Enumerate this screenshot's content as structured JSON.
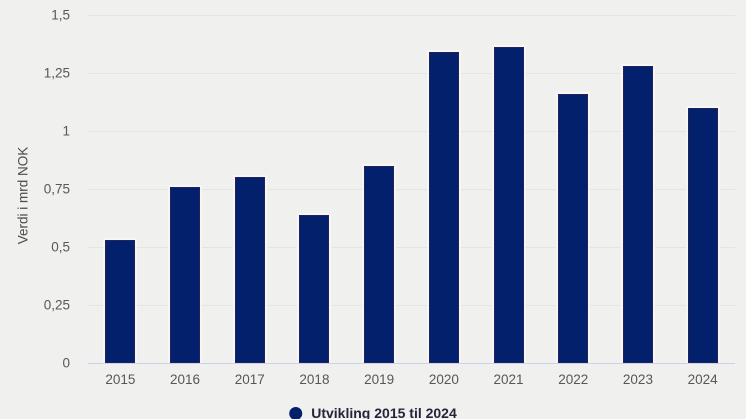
{
  "chart_data": {
    "type": "bar",
    "title": "",
    "ylabel": "Verdi i mrd NOK",
    "xlabel": "",
    "categories": [
      "2015",
      "2016",
      "2017",
      "2018",
      "2019",
      "2020",
      "2021",
      "2022",
      "2023",
      "2024"
    ],
    "values": [
      0.53,
      0.76,
      0.8,
      0.64,
      0.85,
      1.34,
      1.36,
      1.16,
      1.28,
      1.1
    ],
    "ylim": [
      0,
      1.5
    ],
    "ytick_values": [
      0,
      0.25,
      0.5,
      0.75,
      1,
      1.25,
      1.5
    ],
    "ytick_labels": [
      "0",
      "0,25",
      "0,5",
      "0,75",
      "1",
      "1,25",
      "1,5"
    ],
    "grid": "horizontal",
    "legend_position": "bottom",
    "legend_label": "Utvikling 2015 til 2024",
    "bar_color": "#02206b",
    "background_color": "#f0f1ee"
  }
}
